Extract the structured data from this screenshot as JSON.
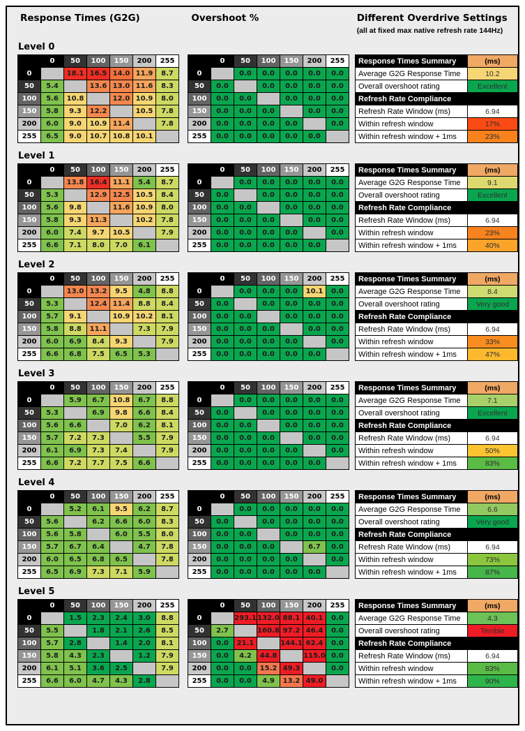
{
  "header": {
    "col1": "Response Times (G2G)",
    "col2": "Overshoot %",
    "col3_title": "Different Overdrive Settings",
    "col3_subtitle": "(all at fixed max native refresh rate 144Hz)"
  },
  "summary_labels": {
    "response_header": "Response Times Summary",
    "ms_header": "(ms)",
    "avg_label": "Average G2G Response Time",
    "rating_label": "Overall overshoot rating",
    "compliance_header": "Refresh Rate Compliance",
    "window_label": "Refresh Rate Window (ms)",
    "within_label": "Within refresh window",
    "within1_label": "Within refresh window + 1ms"
  },
  "colors": {
    "background": "#ECECEC",
    "diagonal_blank": "#C6C6C6",
    "ms_header_bg": "#F0A865",
    "window_bg": "#FFFFFF",
    "axis_shades": [
      {
        "bg": "#000000",
        "fg": "#FFFFFF"
      },
      {
        "bg": "#323232",
        "fg": "#FFFFFF"
      },
      {
        "bg": "#646464",
        "fg": "#FFFFFF"
      },
      {
        "bg": "#969696",
        "fg": "#FFFFFF"
      },
      {
        "bg": "#C8C8C8",
        "fg": "#000000"
      },
      {
        "bg": "#FFFFFF",
        "fg": "#000000"
      }
    ],
    "response_scale": [
      {
        "max": 3.95,
        "color": "#0AA64F"
      },
      {
        "max": 6.95,
        "color": "#7FC24D"
      },
      {
        "max": 8.95,
        "color": "#CDD962"
      },
      {
        "max": 10.95,
        "color": "#F6D573"
      },
      {
        "max": 11.95,
        "color": "#F6A55C"
      },
      {
        "max": 13.95,
        "color": "#F4874F"
      },
      {
        "max": 15.95,
        "color": "#F4703B"
      },
      {
        "max": 10000,
        "color": "#EE2E24"
      }
    ],
    "overshoot_scale": [
      {
        "max": 0.05,
        "color": "#0AA64F"
      },
      {
        "max": 9.95,
        "color": "#7FC24D"
      },
      {
        "max": 11.95,
        "color": "#F6D573"
      },
      {
        "max": 19.95,
        "color": "#F4774E"
      },
      {
        "max": 10000,
        "color": "#EE1C25"
      }
    ]
  },
  "chart_data": {
    "type": "heatmap",
    "axis_values": [
      "0",
      "50",
      "100",
      "150",
      "200",
      "255"
    ],
    "levels": [
      {
        "name": "Level 0",
        "response": [
          [
            null,
            "18.1",
            "16.5",
            "14.0",
            "11.9",
            "8.7"
          ],
          [
            "5.4",
            null,
            "13.6",
            "13.0",
            "11.6",
            "8.3"
          ],
          [
            "5.6",
            "10.8",
            null,
            "12.0",
            "10.9",
            "8.0"
          ],
          [
            "5.8",
            "9.3",
            "12.2",
            null,
            "10.5",
            "7.8"
          ],
          [
            "6.0",
            "9.0",
            "10.9",
            "11.4",
            null,
            "7.8"
          ],
          [
            "6.5",
            "9.0",
            "10.7",
            "10.8",
            "10.1",
            null
          ]
        ],
        "overshoot": [
          [
            null,
            "0.0",
            "0.0",
            "0.0",
            "0.0",
            "0.0"
          ],
          [
            "0.0",
            null,
            "0.0",
            "0.0",
            "0.0",
            "0.0"
          ],
          [
            "0.0",
            "0.0",
            null,
            "0.0",
            "0.0",
            "0.0"
          ],
          [
            "0.0",
            "0.0",
            "0.0",
            null,
            "0.0",
            "0.0"
          ],
          [
            "0.0",
            "0.0",
            "0.0",
            "0.0",
            null,
            "0.0"
          ],
          [
            "0.0",
            "0.0",
            "0.0",
            "0.0",
            "0.0",
            null
          ]
        ],
        "summary": {
          "avg": "10.2",
          "avg_bg": "#F6D674",
          "rating": "Excellent",
          "rating_bg": "#0AA64F",
          "window": "6.94",
          "within": "17%",
          "within_bg": "#FA4B14",
          "within1": "23%",
          "within1_bg": "#F8821E"
        }
      },
      {
        "name": "Level 1",
        "response": [
          [
            null,
            "13.8",
            "16.4",
            "11.1",
            "5.4",
            "8.7"
          ],
          [
            "5.3",
            null,
            "12.9",
            "12.5",
            "10.5",
            "8.4"
          ],
          [
            "5.6",
            "9.8",
            null,
            "11.6",
            "10.9",
            "8.0"
          ],
          [
            "5.8",
            "9.3",
            "11.3",
            null,
            "10.2",
            "7.8"
          ],
          [
            "6.0",
            "7.4",
            "9.7",
            "10.5",
            null,
            "7.9"
          ],
          [
            "6.6",
            "7.1",
            "8.0",
            "7.0",
            "6.1",
            null
          ]
        ],
        "overshoot": [
          [
            null,
            "0.0",
            "0.0",
            "0.0",
            "0.0",
            "0.0"
          ],
          [
            "0.0",
            null,
            "0.0",
            "0.0",
            "0.0",
            "0.0"
          ],
          [
            "0.0",
            "0.0",
            null,
            "0.0",
            "0.0",
            "0.0"
          ],
          [
            "0.0",
            "0.0",
            "0.0",
            null,
            "0.0",
            "0.0"
          ],
          [
            "0.0",
            "0.0",
            "0.0",
            "0.0",
            null,
            "0.0"
          ],
          [
            "0.0",
            "0.0",
            "0.0",
            "0.0",
            "0.0",
            null
          ]
        ],
        "summary": {
          "avg": "9.1",
          "avg_bg": "#DDD96F",
          "rating": "Excellent",
          "rating_bg": "#0AA64F",
          "window": "6.94",
          "within": "23%",
          "within_bg": "#F8821E",
          "within1": "40%",
          "within1_bg": "#FBA42A"
        }
      },
      {
        "name": "Level 2",
        "response": [
          [
            null,
            "13.0",
            "13.2",
            "9.5",
            "4.8",
            "8.8"
          ],
          [
            "5.3",
            null,
            "12.4",
            "11.4",
            "8.8",
            "8.4"
          ],
          [
            "5.7",
            "9.1",
            null,
            "10.9",
            "10.2",
            "8.1"
          ],
          [
            "5.8",
            "8.8",
            "11.1",
            null,
            "7.3",
            "7.9"
          ],
          [
            "6.0",
            "6.9",
            "8.4",
            "9.3",
            null,
            "7.9"
          ],
          [
            "6.6",
            "6.8",
            "7.5",
            "6.5",
            "5.3",
            null
          ]
        ],
        "overshoot": [
          [
            null,
            "0.0",
            "0.0",
            "0.0",
            "10.1",
            "0.0"
          ],
          [
            "0.0",
            null,
            "0.0",
            "0.0",
            "0.0",
            "0.0"
          ],
          [
            "0.0",
            "0.0",
            null,
            "0.0",
            "0.0",
            "0.0"
          ],
          [
            "0.0",
            "0.0",
            "0.0",
            null,
            "0.0",
            "0.0"
          ],
          [
            "0.0",
            "0.0",
            "0.0",
            "0.0",
            null,
            "0.0"
          ],
          [
            "0.0",
            "0.0",
            "0.0",
            "0.0",
            "0.0",
            null
          ]
        ],
        "summary": {
          "avg": "8.4",
          "avg_bg": "#CEDB70",
          "rating": "Very good",
          "rating_bg": "#0AA64F",
          "window": "6.94",
          "within": "33%",
          "within_bg": "#F98D20",
          "within1": "47%",
          "within1_bg": "#FCB92E"
        }
      },
      {
        "name": "Level 3",
        "response": [
          [
            null,
            "5.9",
            "6.7",
            "10.8",
            "6.7",
            "8.8"
          ],
          [
            "5.3",
            null,
            "6.9",
            "9.8",
            "6.6",
            "8.4"
          ],
          [
            "5.6",
            "6.6",
            null,
            "7.0",
            "6.2",
            "8.1"
          ],
          [
            "5.7",
            "7.2",
            "7.3",
            null,
            "5.5",
            "7.9"
          ],
          [
            "6.1",
            "6.9",
            "7.3",
            "7.4",
            null,
            "7.9"
          ],
          [
            "6.6",
            "7.2",
            "7.7",
            "7.5",
            "6.6",
            null
          ]
        ],
        "overshoot": [
          [
            null,
            "0.0",
            "0.0",
            "0.0",
            "0.0",
            "0.0"
          ],
          [
            "0.0",
            null,
            "0.0",
            "0.0",
            "0.0",
            "0.0"
          ],
          [
            "0.0",
            "0.0",
            null,
            "0.0",
            "0.0",
            "0.0"
          ],
          [
            "0.0",
            "0.0",
            "0.0",
            null,
            "0.0",
            "0.0"
          ],
          [
            "0.0",
            "0.0",
            "0.0",
            "0.0",
            null,
            "0.0"
          ],
          [
            "0.0",
            "0.0",
            "0.0",
            "0.0",
            "0.0",
            null
          ]
        ],
        "summary": {
          "avg": "7.1",
          "avg_bg": "#A8D06A",
          "rating": "Excellent",
          "rating_bg": "#0AA64F",
          "window": "6.94",
          "within": "50%",
          "within_bg": "#FCC433",
          "within1": "83%",
          "within1_bg": "#5ABB45"
        }
      },
      {
        "name": "Level 4",
        "response": [
          [
            null,
            "5.2",
            "6.1",
            "9.5",
            "6.2",
            "8.7"
          ],
          [
            "5.6",
            null,
            "6.2",
            "6.6",
            "6.0",
            "8.3"
          ],
          [
            "5.6",
            "5.8",
            null,
            "6.0",
            "5.5",
            "8.0"
          ],
          [
            "5.7",
            "6.7",
            "6.4",
            null,
            "4.7",
            "7.8"
          ],
          [
            "6.0",
            "6.5",
            "6.8",
            "6.5",
            null,
            "7.8"
          ],
          [
            "6.5",
            "6.9",
            "7.3",
            "7.1",
            "5.9",
            null
          ]
        ],
        "overshoot": [
          [
            null,
            "0.0",
            "0.0",
            "0.0",
            "0.0",
            "0.0"
          ],
          [
            "0.0",
            null,
            "0.0",
            "0.0",
            "0.0",
            "0.0"
          ],
          [
            "0.0",
            "0.0",
            null,
            "0.0",
            "0.0",
            "0.0"
          ],
          [
            "0.0",
            "0.0",
            "0.0",
            null,
            "6.7",
            "0.0"
          ],
          [
            "0.0",
            "0.0",
            "0.0",
            "0.0",
            null,
            "0.0"
          ],
          [
            "0.0",
            "0.0",
            "0.0",
            "0.0",
            "0.0",
            null
          ]
        ],
        "summary": {
          "avg": "6.6",
          "avg_bg": "#93C961",
          "rating": "Very good",
          "rating_bg": "#0AA64F",
          "window": "6.94",
          "within": "73%",
          "within_bg": "#8CC63F",
          "within1": "87%",
          "within1_bg": "#46B54A"
        }
      },
      {
        "name": "Level 5",
        "response": [
          [
            null,
            "1.5",
            "2.3",
            "2.4",
            "3.0",
            "8.8"
          ],
          [
            "5.5",
            null,
            "1.8",
            "2.1",
            "2.6",
            "8.5"
          ],
          [
            "5.7",
            "2.8",
            null,
            "1.4",
            "2.0",
            "8.1"
          ],
          [
            "5.8",
            "4.3",
            "2.3",
            null,
            "1.2",
            "7.9"
          ],
          [
            "6.1",
            "5.1",
            "3.6",
            "2.5",
            null,
            "7.9"
          ],
          [
            "6.6",
            "6.0",
            "4.7",
            "4.3",
            "2.8",
            null
          ]
        ],
        "overshoot": [
          [
            null,
            "293.1",
            "132.0",
            "88.1",
            "40.1",
            "0.0"
          ],
          [
            "2.7",
            null,
            "160.8",
            "97.2",
            "46.4",
            "0.0"
          ],
          [
            "0.0",
            "21.1",
            null,
            "144.1",
            "62.4",
            "0.0"
          ],
          [
            "0.0",
            "4.2",
            "44.8",
            null,
            "115.0",
            "0.0"
          ],
          [
            "0.0",
            "0.0",
            "15.2",
            "49.3",
            null,
            "0.0"
          ],
          [
            "0.0",
            "0.0",
            "4.9",
            "13.2",
            "49.0",
            null
          ]
        ],
        "summary": {
          "avg": "4.3",
          "avg_bg": "#6CC157",
          "rating": "Terrible",
          "rating_bg": "#EE1C25",
          "window": "6.94",
          "within": "83%",
          "within_bg": "#5ABB45",
          "within1": "90%",
          "within1_bg": "#2FB44B"
        }
      }
    ]
  }
}
